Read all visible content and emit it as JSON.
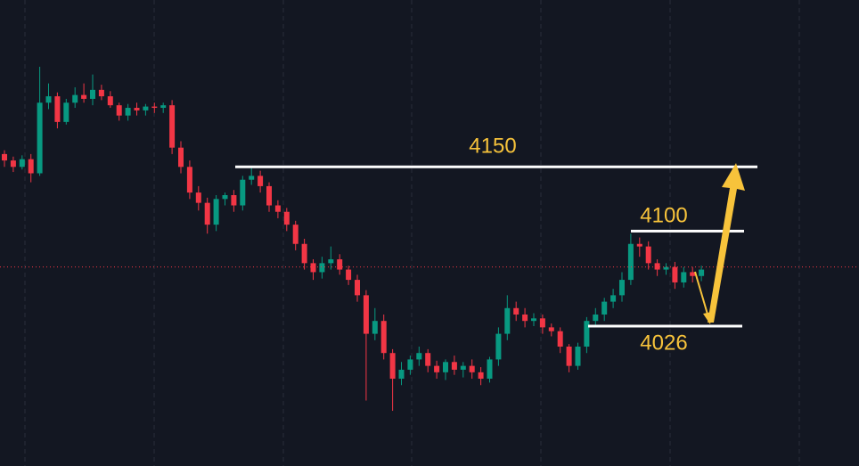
{
  "chart_data": {
    "type": "candlestick",
    "ylim": [
      3917,
      4280
    ],
    "up_color": "#089981",
    "down_color": "#f23645",
    "level_color": "#ffffff",
    "label_color": "#f7c33b",
    "levels": [
      4150,
      4100,
      4026
    ],
    "price_line": 4072,
    "open": [
      4160,
      4155,
      4150,
      4156,
      4145,
      4200,
      4205,
      4185,
      4200,
      4206,
      4203,
      4210,
      4205,
      4198,
      4190,
      4196,
      4194,
      4197,
      4196,
      4198,
      4165,
      4150,
      4130,
      4122,
      4105,
      4125,
      4128,
      4120,
      4140,
      4143,
      4135,
      4120,
      4115,
      4105,
      4090,
      4075,
      4068,
      4075,
      4078,
      4070,
      4062,
      4050,
      4020,
      4030,
      4005,
      3985,
      3992,
      4000,
      4005,
      3995,
      3990,
      3998,
      3992,
      3995,
      3990,
      3985,
      4000,
      4020,
      4040,
      4035,
      4030,
      4032,
      4025,
      4022,
      4010,
      3995,
      4010,
      4030,
      4035,
      4045,
      4050,
      4062,
      4090,
      4088,
      4075,
      4070,
      4072,
      4060,
      4068,
      4065
    ],
    "high": [
      4163,
      4158,
      4159,
      4160,
      4228,
      4215,
      4208,
      4203,
      4212,
      4215,
      4222,
      4214,
      4209,
      4200,
      4199,
      4200,
      4199,
      4200,
      4200,
      4202,
      4170,
      4155,
      4135,
      4126,
      4128,
      4130,
      4132,
      4143,
      4150,
      4147,
      4138,
      4124,
      4118,
      4108,
      4094,
      4078,
      4080,
      4088,
      4082,
      4073,
      4066,
      4054,
      4040,
      4035,
      4008,
      3998,
      4003,
      4010,
      4008,
      3999,
      4000,
      4003,
      3998,
      4000,
      3994,
      4002,
      4025,
      4050,
      4045,
      4040,
      4036,
      4035,
      4028,
      4025,
      4012,
      4013,
      4033,
      4040,
      4048,
      4055,
      4068,
      4098,
      4095,
      4092,
      4078,
      4075,
      4076,
      4072,
      4072,
      4073
    ],
    "low": [
      4150,
      4146,
      4148,
      4138,
      4143,
      4195,
      4180,
      4183,
      4196,
      4200,
      4198,
      4202,
      4196,
      4186,
      4186,
      4190,
      4190,
      4192,
      4192,
      4160,
      4145,
      4125,
      4116,
      4098,
      4100,
      4120,
      4115,
      4116,
      4136,
      4130,
      4115,
      4110,
      4100,
      4085,
      4070,
      4062,
      4063,
      4070,
      4066,
      4058,
      4045,
      3968,
      4015,
      4000,
      3960,
      3980,
      3988,
      3995,
      3990,
      3985,
      3984,
      3988,
      3986,
      3985,
      3980,
      3982,
      3995,
      4015,
      4030,
      4025,
      4026,
      4020,
      4018,
      4005,
      3990,
      3992,
      4005,
      4025,
      4030,
      4040,
      4045,
      4058,
      4080,
      4070,
      4065,
      4066,
      4055,
      4056,
      4060,
      4061
    ],
    "close": [
      4155,
      4150,
      4156,
      4145,
      4200,
      4205,
      4185,
      4200,
      4206,
      4203,
      4210,
      4205,
      4198,
      4190,
      4196,
      4194,
      4197,
      4196,
      4198,
      4165,
      4150,
      4130,
      4122,
      4105,
      4125,
      4128,
      4120,
      4140,
      4143,
      4135,
      4120,
      4115,
      4105,
      4090,
      4075,
      4068,
      4075,
      4078,
      4070,
      4062,
      4050,
      4020,
      4030,
      4005,
      3985,
      3992,
      4000,
      4005,
      3995,
      3990,
      3998,
      3992,
      3995,
      3990,
      3985,
      4000,
      4020,
      4040,
      4035,
      4030,
      4032,
      4025,
      4022,
      4010,
      3995,
      4010,
      4030,
      4035,
      4045,
      4050,
      4062,
      4090,
      4088,
      4075,
      4070,
      4072,
      4060,
      4068,
      4065,
      4070
    ]
  }
}
